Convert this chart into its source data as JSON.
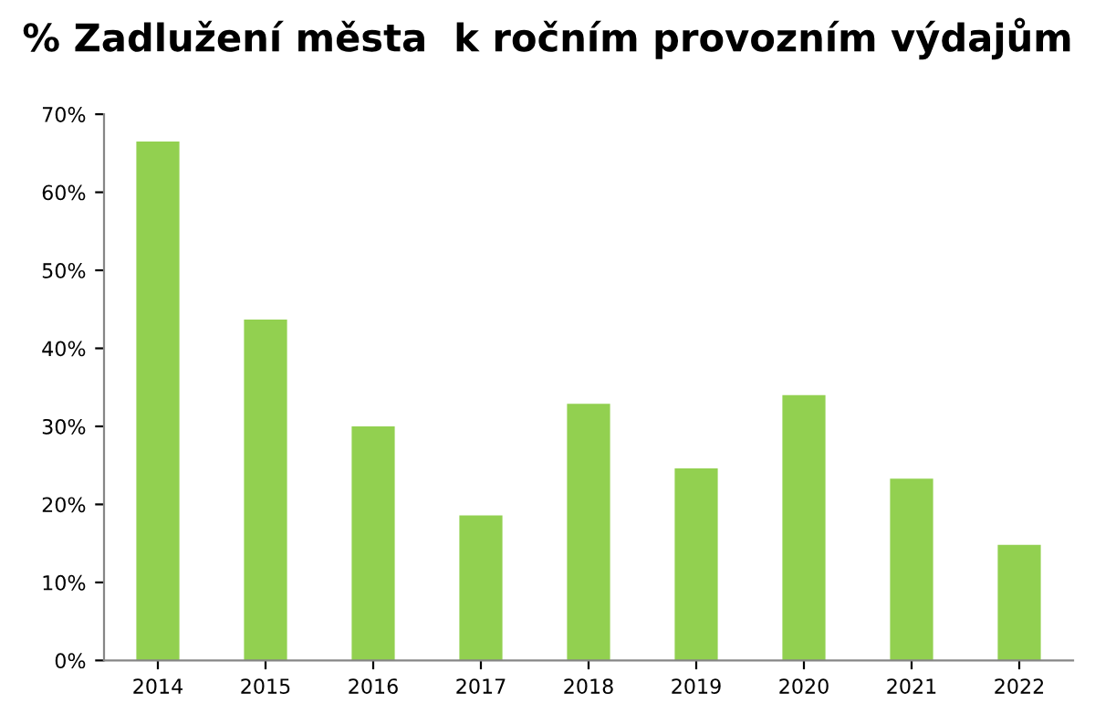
{
  "chart_data": {
    "type": "bar",
    "title": "% Zadlužení města  k ročním provozním výdajům",
    "categories": [
      "2014",
      "2015",
      "2016",
      "2017",
      "2018",
      "2019",
      "2020",
      "2021",
      "2022"
    ],
    "values": [
      66.5,
      43.7,
      30.0,
      18.6,
      32.9,
      24.6,
      34.0,
      23.3,
      14.8
    ],
    "color": "#92d050",
    "ylim": [
      0,
      70
    ],
    "yticks": [
      {
        "value": 0,
        "label": "0%"
      },
      {
        "value": 10,
        "label": "10%"
      },
      {
        "value": 20,
        "label": "20%"
      },
      {
        "value": 30,
        "label": "30%"
      },
      {
        "value": 40,
        "label": "40%"
      },
      {
        "value": 50,
        "label": "50%"
      },
      {
        "value": 60,
        "label": "60%"
      },
      {
        "value": 70,
        "label": "70%"
      }
    ],
    "grid": false,
    "legend": false
  }
}
